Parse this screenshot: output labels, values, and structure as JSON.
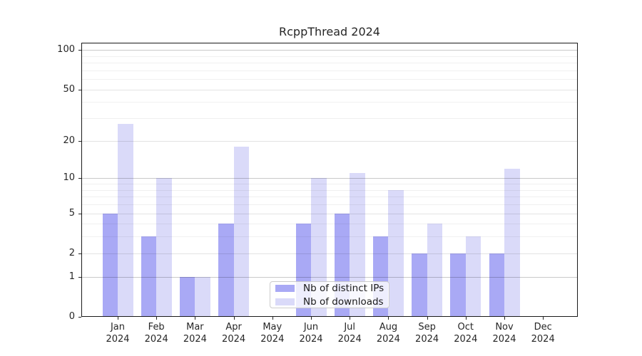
{
  "chart_data": {
    "type": "bar",
    "title": "RcppThread 2024",
    "categories": [
      "Jan",
      "Feb",
      "Mar",
      "Apr",
      "May",
      "Jun",
      "Jul",
      "Aug",
      "Sep",
      "Oct",
      "Nov",
      "Dec"
    ],
    "category_year": "2024",
    "series": [
      {
        "name": "Nb of distinct IPs",
        "color": "#a9a9f5",
        "values": [
          5,
          3,
          1,
          4,
          0,
          4,
          5,
          3,
          2,
          2,
          2,
          0
        ]
      },
      {
        "name": "Nb of downloads",
        "color": "#dadaf9",
        "values": [
          27,
          10,
          1,
          18,
          0,
          10,
          11,
          8,
          4,
          3,
          12,
          0
        ]
      }
    ],
    "yscale": "log1p",
    "ylim": [
      0,
      113
    ],
    "yticks": [
      0,
      1,
      2,
      5,
      10,
      20,
      50,
      100
    ],
    "ytick_labels": [
      "0",
      "1",
      "2",
      "5",
      "10",
      "20",
      "50",
      "100"
    ],
    "grid": {
      "major": [
        1,
        10,
        100
      ],
      "medium": [
        2,
        5,
        20,
        50
      ],
      "minor": [
        3,
        4,
        6,
        7,
        8,
        9,
        30,
        40,
        60,
        70,
        80,
        90
      ]
    },
    "legend": {
      "position": "lower center"
    },
    "xlabel": "",
    "ylabel": ""
  }
}
